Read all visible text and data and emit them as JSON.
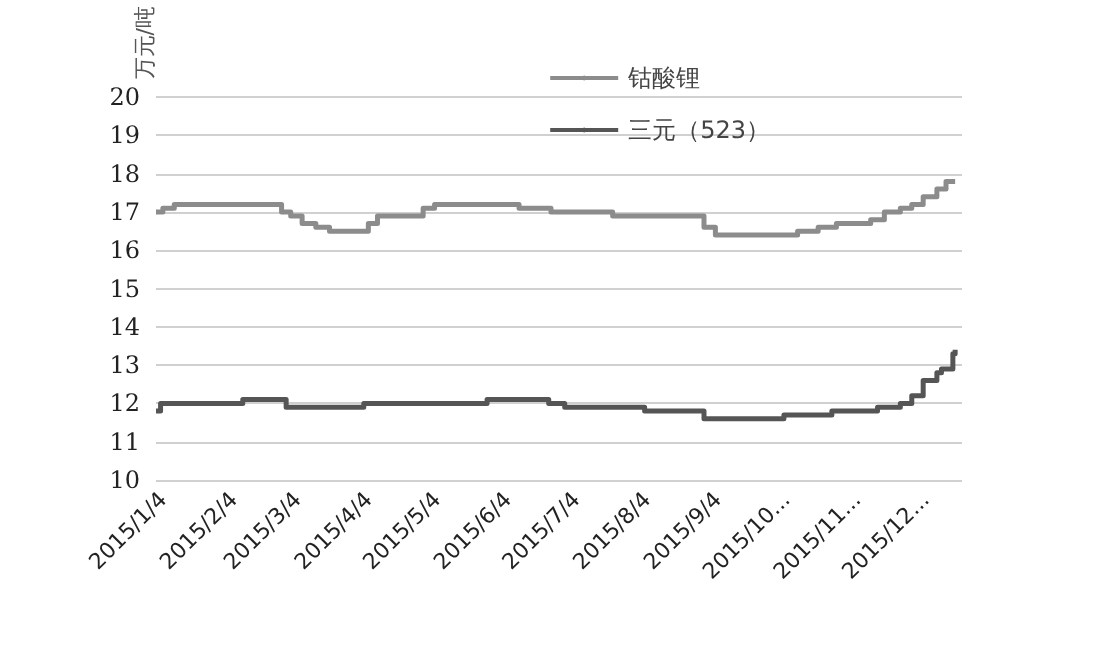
{
  "chart_data": {
    "type": "step",
    "ylabel": "万元/吨",
    "xlim": [
      "2015-01-01",
      "2015-12-20"
    ],
    "xticks": [
      {
        "value": "2015-01-04",
        "label": "2015/1/4"
      },
      {
        "value": "2015-02-04",
        "label": "2015/2/4"
      },
      {
        "value": "2015-03-04",
        "label": "2015/3/4"
      },
      {
        "value": "2015-04-04",
        "label": "2015/4/4"
      },
      {
        "value": "2015-05-04",
        "label": "2015/5/4"
      },
      {
        "value": "2015-06-04",
        "label": "2015/6/4"
      },
      {
        "value": "2015-07-04",
        "label": "2015/7/4"
      },
      {
        "value": "2015-08-04",
        "label": "2015/8/4"
      },
      {
        "value": "2015-09-04",
        "label": "2015/9/4"
      },
      {
        "value": "2015-10-04",
        "label": "2015/10..."
      },
      {
        "value": "2015-11-04",
        "label": "2015/11..."
      },
      {
        "value": "2015-12-04",
        "label": "2015/12..."
      }
    ],
    "ylim": [
      10,
      20
    ],
    "yticks": [
      10,
      11,
      12,
      13,
      14,
      15,
      16,
      17,
      18,
      19,
      20
    ],
    "grid": "y",
    "legend": "top right",
    "series": [
      {
        "name": "钴酸锂",
        "color": "#8c8c8c",
        "x": [
          "2015-01-01",
          "2015-01-04",
          "2015-01-09",
          "2015-02-25",
          "2015-03-01",
          "2015-03-06",
          "2015-03-12",
          "2015-03-18",
          "2015-04-04",
          "2015-04-08",
          "2015-04-28",
          "2015-05-03",
          "2015-06-09",
          "2015-06-23",
          "2015-07-20",
          "2015-08-29",
          "2015-09-03",
          "2015-10-09",
          "2015-10-18",
          "2015-10-26",
          "2015-11-10",
          "2015-11-16",
          "2015-11-23",
          "2015-11-28",
          "2015-12-03",
          "2015-12-09",
          "2015-12-13",
          "2015-12-17"
        ],
        "values": [
          17.0,
          17.1,
          17.2,
          17.0,
          16.9,
          16.7,
          16.6,
          16.5,
          16.7,
          16.9,
          17.1,
          17.2,
          17.1,
          17.0,
          16.9,
          16.6,
          16.4,
          16.5,
          16.6,
          16.7,
          16.8,
          17.0,
          17.1,
          17.2,
          17.4,
          17.6,
          17.8,
          17.8
        ]
      },
      {
        "name": "三元（523）",
        "color": "#555555",
        "x": [
          "2015-01-01",
          "2015-01-03",
          "2015-02-08",
          "2015-02-27",
          "2015-04-02",
          "2015-05-26",
          "2015-06-22",
          "2015-06-29",
          "2015-08-03",
          "2015-08-29",
          "2015-10-03",
          "2015-10-24",
          "2015-11-13",
          "2015-11-23",
          "2015-11-28",
          "2015-12-03",
          "2015-12-09",
          "2015-12-11",
          "2015-12-16",
          "2015-12-17"
        ],
        "values": [
          11.8,
          12.0,
          12.1,
          11.9,
          12.0,
          12.1,
          12.0,
          11.9,
          11.8,
          11.6,
          11.7,
          11.8,
          11.9,
          12.0,
          12.2,
          12.6,
          12.8,
          12.9,
          13.3,
          13.4
        ]
      }
    ]
  }
}
